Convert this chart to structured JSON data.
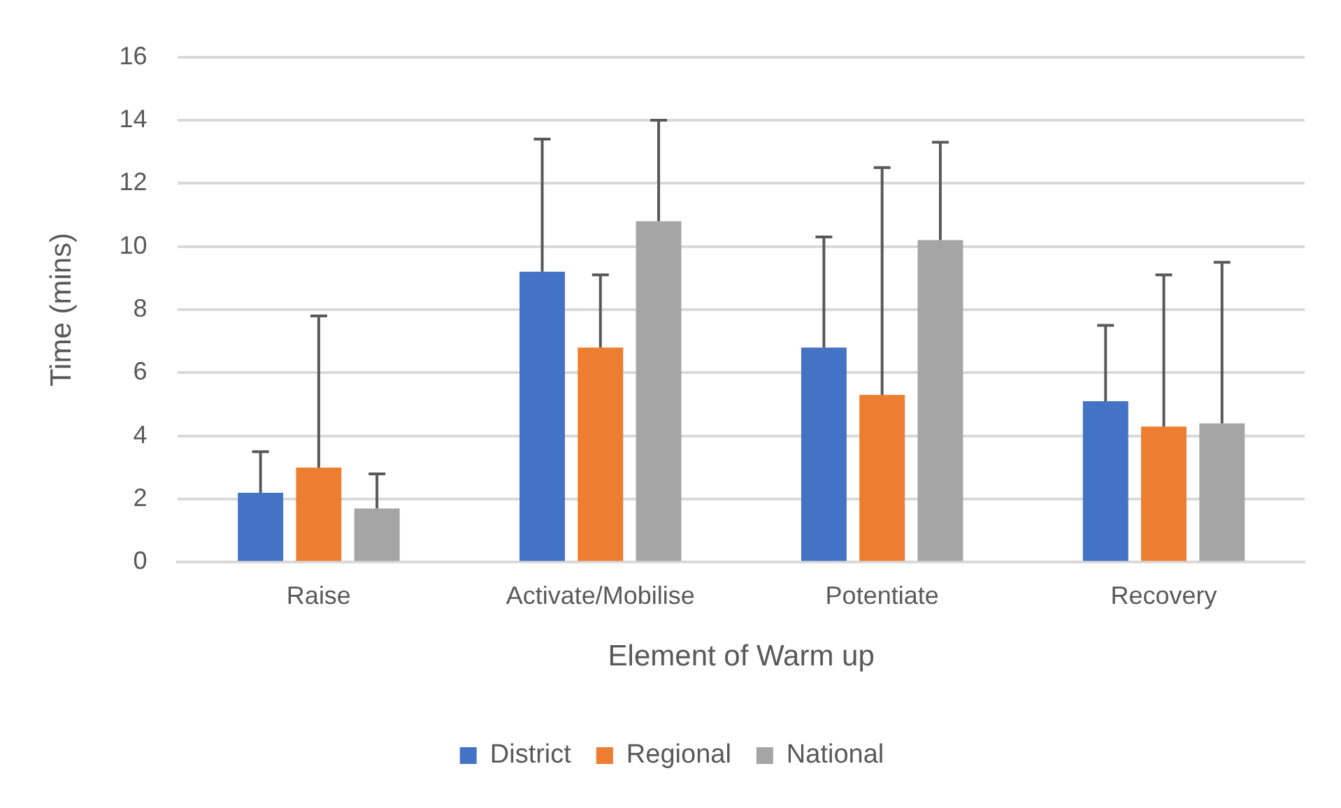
{
  "chart_data": {
    "type": "bar",
    "xlabel": "Element of Warm up",
    "ylabel": "Time (mins)",
    "categories": [
      "Raise",
      "Activate/Mobilise",
      "Potentiate",
      "Recovery"
    ],
    "series": [
      {
        "name": "District",
        "color": "#4472c4",
        "values": [
          2.2,
          9.2,
          6.8,
          5.1
        ],
        "errors": [
          [
            2.2,
            3.5
          ],
          [
            9.2,
            13.4
          ],
          [
            6.8,
            10.3
          ],
          [
            5.1,
            7.5
          ]
        ]
      },
      {
        "name": "Regional",
        "color": "#ed7d31",
        "values": [
          3.0,
          6.8,
          5.3,
          4.3
        ],
        "errors": [
          [
            3.0,
            7.8
          ],
          [
            6.8,
            9.1
          ],
          [
            5.3,
            12.5
          ],
          [
            4.3,
            9.1
          ]
        ]
      },
      {
        "name": "National",
        "color": "#a5a5a5",
        "values": [
          1.7,
          10.8,
          10.2,
          4.4
        ],
        "errors": [
          [
            1.7,
            2.8
          ],
          [
            10.8,
            14.0
          ],
          [
            10.2,
            13.3
          ],
          [
            4.4,
            9.5
          ]
        ]
      }
    ],
    "ylim": [
      0,
      16
    ],
    "yticks": [
      0,
      2,
      4,
      6,
      8,
      10,
      12,
      14,
      16
    ],
    "grid": "y",
    "legend": "bottom"
  }
}
